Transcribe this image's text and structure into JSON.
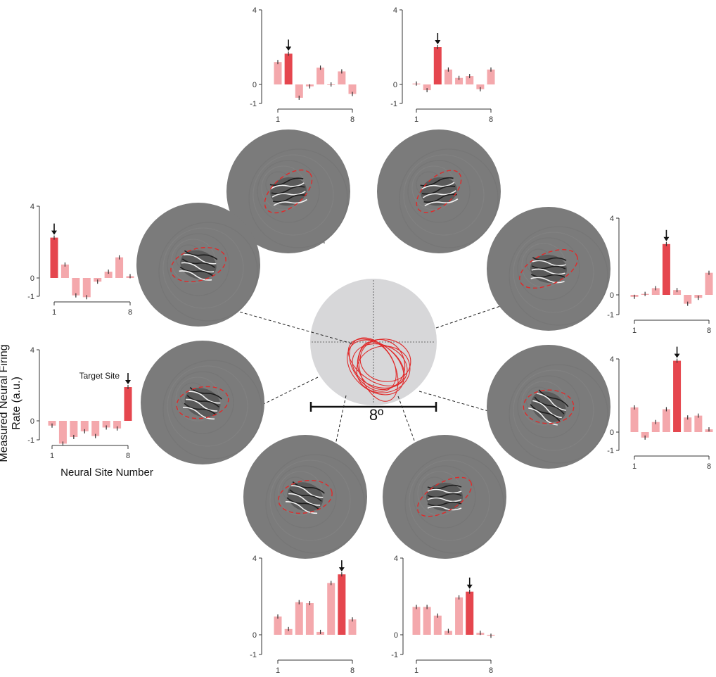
{
  "figure": {
    "y_axis_label": "Measured Neural Firing Rate (a.u.)",
    "x_axis_label": "Neural Site Number",
    "target_annotation": "Target Site",
    "scale_bar_label": "8º"
  },
  "chart_data": [
    {
      "type": "bar",
      "position": "top-left",
      "x": [
        1,
        2,
        3,
        4,
        5,
        6,
        7,
        8
      ],
      "target_site": 2,
      "values": [
        1.2,
        1.65,
        -0.7,
        -0.1,
        0.9,
        0.0,
        0.7,
        -0.5
      ],
      "ylim": [
        -1,
        4
      ],
      "y_ticks": [
        "-1",
        "0",
        "4"
      ],
      "x_ticks": [
        "1",
        "8"
      ]
    },
    {
      "type": "bar",
      "position": "top-right",
      "x": [
        1,
        2,
        3,
        4,
        5,
        6,
        7,
        8
      ],
      "target_site": 3,
      "values": [
        0.05,
        -0.3,
        2.0,
        0.8,
        0.35,
        0.45,
        -0.25,
        0.8
      ],
      "ylim": [
        -1,
        4
      ],
      "y_ticks": [
        "-1",
        "0",
        "4"
      ],
      "x_ticks": [
        "1",
        "8"
      ]
    },
    {
      "type": "bar",
      "position": "upper-right",
      "x": [
        1,
        2,
        3,
        4,
        5,
        6,
        7,
        8
      ],
      "target_site": 4,
      "values": [
        -0.1,
        0.05,
        0.35,
        2.65,
        0.25,
        -0.45,
        -0.15,
        1.15
      ],
      "ylim": [
        -1,
        4
      ],
      "y_ticks": [
        "-1",
        "0",
        "4"
      ],
      "x_ticks": [
        "1",
        "8"
      ]
    },
    {
      "type": "bar",
      "position": "lower-right",
      "x": [
        1,
        2,
        3,
        4,
        5,
        6,
        7,
        8
      ],
      "target_site": 5,
      "values": [
        1.35,
        -0.3,
        0.55,
        1.25,
        3.9,
        0.8,
        0.9,
        0.15
      ],
      "ylim": [
        -1,
        4
      ],
      "y_ticks": [
        "-1",
        "0",
        "4"
      ],
      "x_ticks": [
        "1",
        "8"
      ]
    },
    {
      "type": "bar",
      "position": "bottom-right",
      "x": [
        1,
        2,
        3,
        4,
        5,
        6,
        7,
        8
      ],
      "target_site": 6,
      "values": [
        1.45,
        1.45,
        1.0,
        0.2,
        1.95,
        2.25,
        0.1,
        -0.05
      ],
      "ylim": [
        -1,
        4
      ],
      "y_ticks": [
        "-1",
        "0",
        "4"
      ],
      "x_ticks": [
        "1",
        "8"
      ]
    },
    {
      "type": "bar",
      "position": "bottom-left",
      "x": [
        1,
        2,
        3,
        4,
        5,
        6,
        7,
        8
      ],
      "target_site": 7,
      "values": [
        0.95,
        0.3,
        1.7,
        1.65,
        0.15,
        2.7,
        3.15,
        0.8
      ],
      "ylim": [
        -1,
        4
      ],
      "y_ticks": [
        "-1",
        "0",
        "4"
      ],
      "x_ticks": [
        "1",
        "8"
      ]
    },
    {
      "type": "bar",
      "position": "lower-left",
      "x": [
        1,
        2,
        3,
        4,
        5,
        6,
        7,
        8
      ],
      "target_site": 8,
      "values": [
        -0.25,
        -1.2,
        -0.85,
        -0.55,
        -0.8,
        -0.35,
        -0.4,
        1.9
      ],
      "ylim": [
        -1,
        4
      ],
      "y_ticks": [
        "-1",
        "0",
        "4"
      ],
      "x_ticks": [
        "1",
        "8"
      ]
    },
    {
      "type": "bar",
      "position": "upper-left",
      "x": [
        1,
        2,
        3,
        4,
        5,
        6,
        7,
        8
      ],
      "target_site": 1,
      "values": [
        2.25,
        0.75,
        -0.95,
        -1.05,
        -0.2,
        0.35,
        1.15,
        0.1
      ],
      "ylim": [
        -1,
        4
      ],
      "y_ticks": [
        "-1",
        "0",
        "4"
      ],
      "x_ticks": [
        "1",
        "8"
      ]
    }
  ],
  "colors": {
    "target_bar": "#e5464e",
    "other_bar": "#f4a8ac",
    "image_disk": "#7b7b7b",
    "center_disk": "#d7d7d9",
    "rf_ellipse": "#e02a2a",
    "axis": "#333333"
  }
}
